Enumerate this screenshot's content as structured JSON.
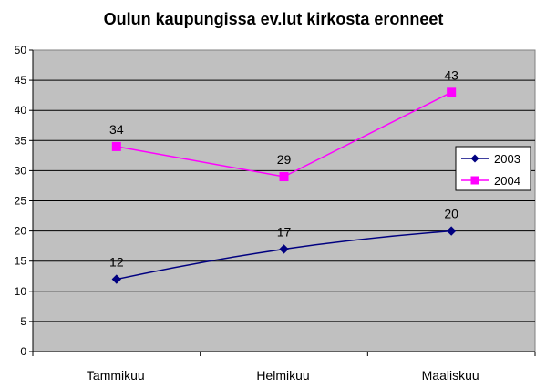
{
  "chart_data": {
    "type": "line",
    "title": "Oulun kaupungissa ev.lut kirkosta eronneet",
    "categories": [
      "Tammikuu",
      "Helmikuu",
      "Maaliskuu"
    ],
    "series": [
      {
        "name": "2003",
        "values": [
          12,
          17,
          20
        ],
        "color": "#000080",
        "marker": "diamond"
      },
      {
        "name": "2004",
        "values": [
          34,
          29,
          43
        ],
        "color": "#ff00ff",
        "marker": "square"
      }
    ],
    "ylim": [
      0,
      50
    ],
    "y_ticks": [
      "0",
      "5",
      "10",
      "15",
      "20",
      "25",
      "30",
      "35",
      "40",
      "45",
      "50"
    ],
    "grid": true,
    "plot_background": "#c0c0c0",
    "legend_position": "right",
    "data_labels": true
  }
}
